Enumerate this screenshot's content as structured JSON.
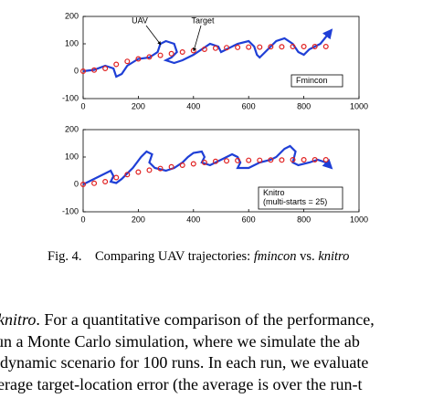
{
  "chart_data": [
    {
      "type": "line",
      "xlim": [
        0,
        1000
      ],
      "ylim": [
        -100,
        200
      ],
      "xticks": [
        0,
        200,
        400,
        600,
        800,
        1000
      ],
      "yticks": [
        -100,
        0,
        100,
        200
      ],
      "label_box": [
        "Fmincon"
      ],
      "series": [
        {
          "name": "UAV",
          "color": "#1f3fd6",
          "x": [
            0,
            40,
            80,
            110,
            120,
            140,
            160,
            200,
            240,
            270,
            280,
            300,
            330,
            340,
            320,
            300,
            330,
            360,
            400,
            430,
            460,
            490,
            500,
            520,
            560,
            600,
            620,
            630,
            640,
            660,
            700,
            730,
            760,
            780,
            800,
            820,
            860,
            900
          ],
          "values": [
            0,
            5,
            20,
            10,
            -20,
            -10,
            20,
            45,
            50,
            70,
            100,
            110,
            100,
            70,
            50,
            40,
            30,
            40,
            60,
            80,
            100,
            90,
            70,
            80,
            100,
            110,
            90,
            60,
            50,
            70,
            110,
            120,
            100,
            70,
            60,
            80,
            100,
            150
          ]
        },
        {
          "name": "Target",
          "color": "#e02020",
          "x": [
            0,
            40,
            80,
            120,
            160,
            200,
            240,
            280,
            320,
            360,
            400,
            440,
            480,
            520,
            560,
            600,
            640,
            680,
            720,
            760,
            800,
            840,
            880
          ],
          "values": [
            0,
            4,
            10,
            25,
            36,
            45,
            52,
            58,
            64,
            70,
            75,
            80,
            84,
            86,
            87,
            88,
            88,
            89,
            89,
            90,
            90,
            90,
            90
          ]
        }
      ]
    },
    {
      "type": "line",
      "xlim": [
        0,
        1000
      ],
      "ylim": [
        -100,
        200
      ],
      "xticks": [
        0,
        200,
        400,
        600,
        800,
        1000
      ],
      "yticks": [
        -100,
        0,
        100,
        200
      ],
      "label_box": [
        "Knitro",
        "(multi-starts = 25)"
      ],
      "series": [
        {
          "color": "#1f3fd6",
          "x": [
            0,
            40,
            80,
            100,
            110,
            100,
            120,
            140,
            180,
            210,
            230,
            250,
            240,
            260,
            300,
            330,
            360,
            380,
            400,
            430,
            440,
            430,
            460,
            500,
            540,
            560,
            570,
            560,
            600,
            640,
            680,
            700,
            730,
            750,
            770,
            760,
            780,
            820,
            850,
            880,
            900
          ],
          "values": [
            0,
            20,
            40,
            50,
            30,
            10,
            5,
            20,
            60,
            100,
            120,
            110,
            80,
            60,
            50,
            60,
            80,
            100,
            115,
            120,
            100,
            80,
            70,
            90,
            110,
            100,
            80,
            60,
            60,
            80,
            90,
            100,
            130,
            140,
            120,
            80,
            70,
            80,
            90,
            80,
            60
          ]
        },
        {
          "color": "#e02020",
          "x": [
            0,
            40,
            80,
            120,
            160,
            200,
            240,
            280,
            320,
            360,
            400,
            440,
            480,
            520,
            560,
            600,
            640,
            680,
            720,
            760,
            800,
            840,
            880
          ],
          "values": [
            0,
            4,
            10,
            25,
            36,
            45,
            52,
            58,
            64,
            70,
            75,
            80,
            84,
            86,
            87,
            88,
            88,
            89,
            89,
            90,
            90,
            90,
            90
          ]
        }
      ]
    }
  ],
  "caption": {
    "label": "Fig. 4.",
    "text": "Comparing UAV trajectories: ",
    "method_a": "fmincon",
    "joiner": " vs. ",
    "method_b": "knitro"
  },
  "body": {
    "lines": [
      [
        "knitro",
        ". For a quantitative comparison of the performance,"
      ],
      [
        "un a Monte Carlo simulation, where we simulate the ab"
      ],
      [
        "dynamic scenario for 100 runs. In each run, we evaluate"
      ],
      [
        "verage target-location error (the average is over the run-t"
      ]
    ]
  }
}
